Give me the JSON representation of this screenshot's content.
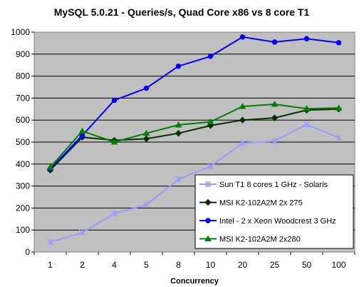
{
  "chart_data": {
    "type": "line",
    "title": "MySQL 5.0.21 - Queries/s, Quad Core x86 vs 8 core T1",
    "xlabel": "Concurrency",
    "ylabel": "",
    "categories": [
      "1",
      "2",
      "4",
      "5",
      "8",
      "10",
      "20",
      "25",
      "50",
      "100"
    ],
    "ylim": [
      0,
      1000
    ],
    "yticks": [
      "0",
      "100",
      "200",
      "300",
      "400",
      "500",
      "600",
      "700",
      "800",
      "900",
      "1000"
    ],
    "grid": true,
    "legend_position": "bottom-right",
    "plot_background": "#c0c0c0",
    "series": [
      {
        "name": "Sun T1 8 cores 1 GHz - Solaris",
        "color": "#9999ff",
        "marker": "star",
        "values": [
          45,
          88,
          175,
          215,
          330,
          390,
          495,
          505,
          580,
          520
        ]
      },
      {
        "name": "MSI K2-102A2M 2x 275",
        "color": "#003300",
        "marker": "diamond",
        "values": [
          372,
          522,
          508,
          515,
          540,
          575,
          600,
          610,
          645,
          650
        ]
      },
      {
        "name": "Intel - 2 x Xeon Woodcrest 3 GHz",
        "color": "#0000ff",
        "marker": "circle",
        "values": [
          378,
          530,
          690,
          745,
          845,
          890,
          978,
          955,
          970,
          952
        ]
      },
      {
        "name": "MSI K2-102A2M 2x280",
        "color": "#008000",
        "marker": "triangle",
        "values": [
          385,
          550,
          500,
          540,
          578,
          592,
          662,
          672,
          652,
          655
        ]
      }
    ]
  }
}
